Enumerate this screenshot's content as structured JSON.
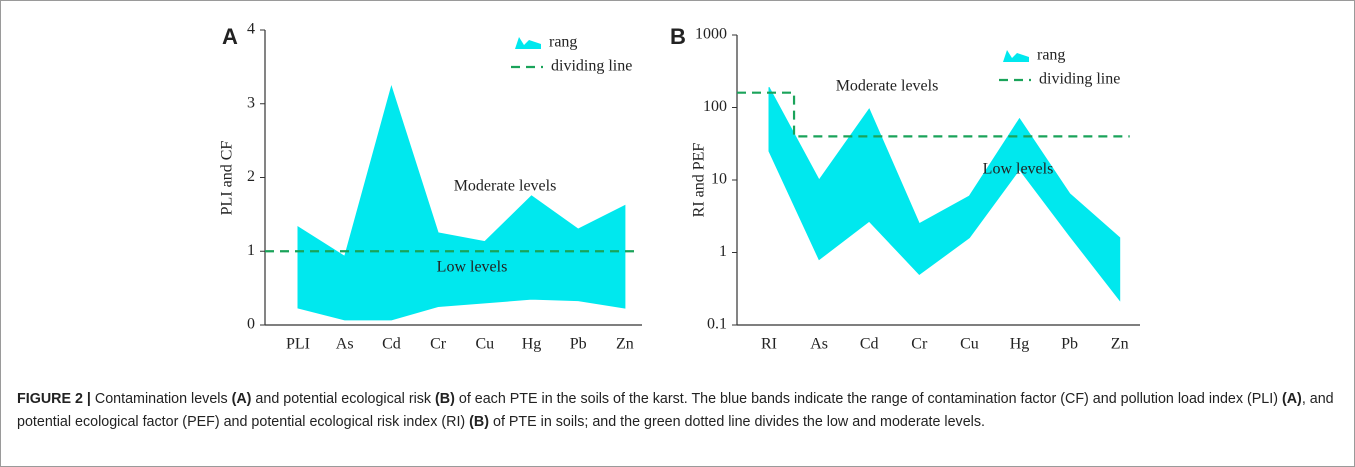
{
  "chart_data": [
    {
      "type": "area",
      "panel": "A",
      "y_label": "PLI and CF",
      "categories": [
        "PLI",
        "As",
        "Cd",
        "Cr",
        "Cu",
        "Hg",
        "Pb",
        "Zn"
      ],
      "ylim": [
        0,
        4
      ],
      "yticks": [
        0,
        1,
        2,
        3,
        4
      ],
      "log": false,
      "series": [
        {
          "name": "rang",
          "color": "#00e8ee",
          "upper": [
            1.33,
            0.93,
            3.23,
            1.25,
            1.13,
            1.75,
            1.3,
            1.62
          ],
          "lower": [
            0.23,
            0.07,
            0.07,
            0.25,
            0.3,
            0.35,
            0.33,
            0.23
          ]
        },
        {
          "name": "dividing line",
          "color": "#1aa35a",
          "values": [
            1,
            1,
            1,
            1,
            1,
            1,
            1,
            1
          ]
        }
      ],
      "annotations": [
        "Moderate levels",
        "Low levels"
      ]
    },
    {
      "type": "area",
      "panel": "B",
      "y_label": "RI and PEF",
      "categories": [
        "RI",
        "As",
        "Cd",
        "Cr",
        "Cu",
        "Hg",
        "Pb",
        "Zn"
      ],
      "ylim": [
        0.1,
        1000
      ],
      "yticks": [
        0.1,
        1,
        10,
        100,
        1000
      ],
      "log": true,
      "series": [
        {
          "name": "rang",
          "color": "#00e8ee",
          "upper": [
            190,
            10,
            95,
            2.5,
            6,
            70,
            6.5,
            1.6
          ],
          "lower": [
            25,
            0.8,
            2.7,
            0.5,
            1.6,
            14,
            1.7,
            0.22
          ]
        },
        {
          "name": "dividing line",
          "color": "#1aa35a",
          "values": [
            160,
            40,
            40,
            40,
            40,
            40,
            40,
            40
          ]
        }
      ],
      "annotations": [
        "Moderate levels",
        "Low levels"
      ]
    }
  ],
  "caption": [
    {
      "text": "FIGURE 2 |",
      "bold": true
    },
    {
      "text": " Contamination levels ",
      "bold": false
    },
    {
      "text": "(A)",
      "bold": true
    },
    {
      "text": " and potential ecological risk ",
      "bold": false
    },
    {
      "text": "(B)",
      "bold": true
    },
    {
      "text": " of each PTE in the soils of the karst. The blue bands indicate the range of contamination factor (CF) and pollution load index (PLI) ",
      "bold": false
    },
    {
      "text": "(A)",
      "bold": true
    },
    {
      "text": ", and potential ecological factor (PEF) and potential ecological risk index (RI) ",
      "bold": false
    },
    {
      "text": "(B)",
      "bold": true
    },
    {
      "text": " of PTE in soils; and the green dotted line divides the low and moderate levels.",
      "bold": false
    }
  ]
}
